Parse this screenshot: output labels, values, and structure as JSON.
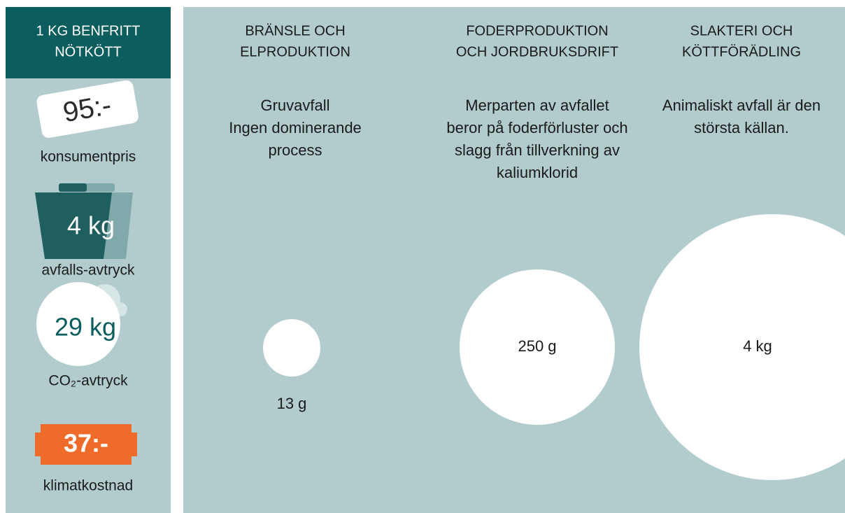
{
  "sidebar": {
    "title": [
      "1 KG BENFRITT",
      "NÖTKÖTT"
    ],
    "items": [
      {
        "value": "95:-",
        "label": "konsumentpris"
      },
      {
        "value": "4 kg",
        "label": "avfalls-avtryck"
      },
      {
        "value": "29 kg",
        "label": "CO₂-avtryck"
      },
      {
        "value": "37:-",
        "label": "klimatkostnad"
      }
    ]
  },
  "columns": [
    {
      "heading": [
        "BRÄNSLE OCH",
        "ELPRODUKTION"
      ],
      "description": [
        "Gruvavfall",
        "Ingen dominerande",
        "process"
      ],
      "amount": "13 g"
    },
    {
      "heading": [
        "FODERPRODUKTION",
        "OCH JORDBRUKSDRIFT"
      ],
      "description": [
        "Merparten av avfallet",
        "beror på foderförluster och",
        "slagg från tillverkning av",
        "kaliumklorid"
      ],
      "amount": "250 g"
    },
    {
      "heading": [
        "SLAKTERI OCH",
        "KÖTTFÖRÄDLING"
      ],
      "description": [
        "Animaliskt avfall är den",
        "största källan."
      ],
      "amount": "4 kg"
    }
  ]
}
